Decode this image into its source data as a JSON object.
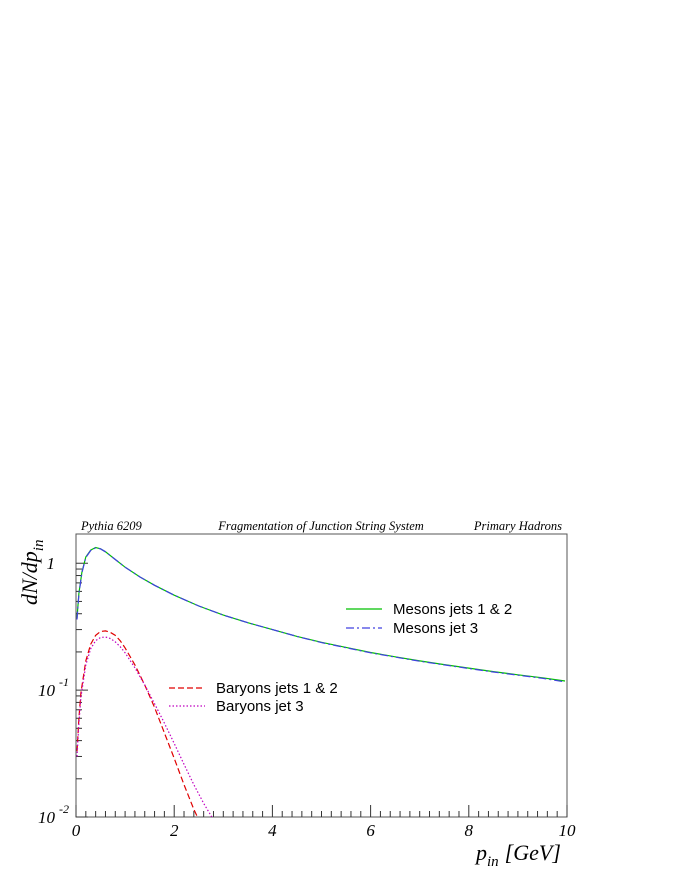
{
  "header": {
    "left": "Pythia 6209",
    "center": "Fragmentation of Junction String System",
    "right": "Primary Hadrons"
  },
  "chart_data": {
    "type": "line",
    "title": "",
    "xlabel": {
      "main": "p",
      "sub": "in",
      "unit": "[GeV]"
    },
    "ylabel": {
      "main": "dN/dp",
      "sub": "in"
    },
    "xlim": [
      0,
      10
    ],
    "ylim": [
      0.01,
      1.7
    ],
    "yscale": "log",
    "x_ticks": [
      "0",
      "2",
      "4",
      "6",
      "8",
      "10"
    ],
    "y_ticks": [
      {
        "value": 1,
        "label": "1",
        "exp": ""
      },
      {
        "value": 0.1,
        "label": "10",
        "exp": "-1"
      },
      {
        "value": 0.01,
        "label": "10",
        "exp": "-2"
      }
    ],
    "legend_groups": [
      {
        "placement": "center-right",
        "entries": [
          "Mesons jets 1 & 2",
          "Mesons jet 3"
        ]
      },
      {
        "placement": "center-left",
        "entries": [
          "Baryons jets 1 & 2",
          "Baryons jet 3"
        ]
      }
    ],
    "series": [
      {
        "name": "Mesons jets 1 & 2",
        "color": "#00c000",
        "dash": "solid",
        "x": [
          0.02,
          0.06,
          0.12,
          0.2,
          0.3,
          0.4,
          0.5,
          0.6,
          0.8,
          1.0,
          1.3,
          1.6,
          2.0,
          2.5,
          3.0,
          3.5,
          4.0,
          4.5,
          5.0,
          5.5,
          6.0,
          6.5,
          7.0,
          7.5,
          8.0,
          8.5,
          9.0,
          9.5,
          9.96
        ],
        "y": [
          0.37,
          0.58,
          0.85,
          1.12,
          1.27,
          1.33,
          1.3,
          1.23,
          1.07,
          0.93,
          0.78,
          0.67,
          0.56,
          0.46,
          0.39,
          0.34,
          0.3,
          0.265,
          0.238,
          0.217,
          0.198,
          0.183,
          0.17,
          0.159,
          0.149,
          0.14,
          0.132,
          0.125,
          0.118
        ]
      },
      {
        "name": "Mesons jet 3",
        "color": "#4040e0",
        "dash": "dashdot",
        "x": [
          0.02,
          0.06,
          0.12,
          0.2,
          0.3,
          0.4,
          0.5,
          0.6,
          0.8,
          1.0,
          1.3,
          1.6,
          2.0,
          2.5,
          3.0,
          3.5,
          4.0,
          4.5,
          5.0,
          5.5,
          6.0,
          6.5,
          7.0,
          7.5,
          8.0,
          8.5,
          9.0,
          9.5,
          9.96
        ],
        "y": [
          0.36,
          0.57,
          0.84,
          1.11,
          1.26,
          1.32,
          1.3,
          1.23,
          1.07,
          0.93,
          0.78,
          0.67,
          0.56,
          0.46,
          0.39,
          0.34,
          0.3,
          0.265,
          0.237,
          0.216,
          0.197,
          0.182,
          0.169,
          0.158,
          0.148,
          0.139,
          0.131,
          0.124,
          0.116
        ]
      },
      {
        "name": "Baryons jets 1 & 2",
        "color": "#e00000",
        "dash": "dashed",
        "x": [
          0.02,
          0.06,
          0.1,
          0.2,
          0.3,
          0.4,
          0.5,
          0.6,
          0.7,
          0.8,
          0.9,
          1.0,
          1.2,
          1.4,
          1.6,
          1.8,
          2.0,
          2.2,
          2.4,
          2.5
        ],
        "y": [
          0.033,
          0.06,
          0.095,
          0.17,
          0.23,
          0.27,
          0.29,
          0.293,
          0.285,
          0.27,
          0.245,
          0.215,
          0.158,
          0.11,
          0.073,
          0.046,
          0.029,
          0.018,
          0.0115,
          0.0095
        ]
      },
      {
        "name": "Baryons jet 3",
        "color": "#c000c0",
        "dash": "dotted",
        "x": [
          0.02,
          0.06,
          0.1,
          0.2,
          0.3,
          0.4,
          0.5,
          0.6,
          0.7,
          0.8,
          0.9,
          1.0,
          1.2,
          1.4,
          1.6,
          1.8,
          2.0,
          2.2,
          2.4,
          2.6,
          2.8
        ],
        "y": [
          0.03,
          0.055,
          0.088,
          0.158,
          0.212,
          0.245,
          0.26,
          0.262,
          0.255,
          0.24,
          0.22,
          0.197,
          0.15,
          0.11,
          0.078,
          0.055,
          0.038,
          0.026,
          0.018,
          0.0128,
          0.0095
        ]
      }
    ]
  }
}
